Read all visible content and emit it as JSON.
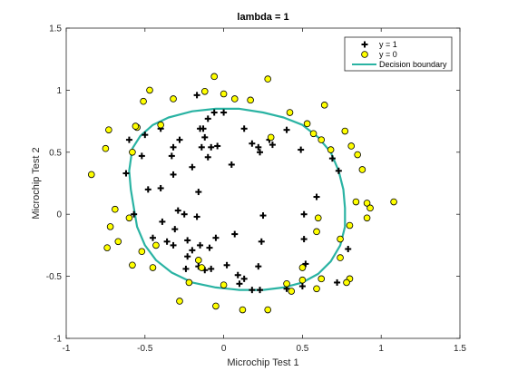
{
  "chart_data": {
    "type": "scatter",
    "title": "lambda = 1",
    "xlabel": "Microchip Test 1",
    "ylabel": "Microchip Test 2",
    "xlim": [
      -1,
      1.5
    ],
    "ylim": [
      -1,
      1.5
    ],
    "xticks": [
      -1,
      -0.5,
      0,
      0.5,
      1,
      1.5
    ],
    "xtick_labels": [
      "-1",
      "-0.5",
      "0",
      "0.5",
      "1",
      "1.5"
    ],
    "yticks": [
      -1,
      -0.5,
      0,
      0.5,
      1,
      1.5
    ],
    "ytick_labels": [
      "-1",
      "-0.5",
      "0",
      "0.5",
      "1",
      "1.5"
    ],
    "grid": false,
    "legend_position": "top-right",
    "series": [
      {
        "name": "y = 1",
        "marker": "plus",
        "color": "#000000",
        "points": [
          [
            -0.17,
            0.96
          ],
          [
            -0.06,
            0.82
          ],
          [
            -0.1,
            0.77
          ],
          [
            0.0,
            0.82
          ],
          [
            -0.6,
            0.6
          ],
          [
            -0.5,
            0.64
          ],
          [
            -0.52,
            0.47
          ],
          [
            -0.4,
            0.69
          ],
          [
            -0.32,
            0.54
          ],
          [
            -0.33,
            0.47
          ],
          [
            -0.28,
            0.6
          ],
          [
            -0.62,
            0.33
          ],
          [
            -0.48,
            0.2
          ],
          [
            -0.4,
            0.21
          ],
          [
            -0.32,
            0.32
          ],
          [
            -0.29,
            0.03
          ],
          [
            -0.25,
            0.0
          ],
          [
            -0.2,
            0.38
          ],
          [
            -0.15,
            0.69
          ],
          [
            -0.13,
            0.69
          ],
          [
            -0.12,
            0.62
          ],
          [
            -0.14,
            0.54
          ],
          [
            -0.08,
            0.54
          ],
          [
            -0.1,
            0.46
          ],
          [
            -0.04,
            0.55
          ],
          [
            -0.16,
            0.18
          ],
          [
            -0.17,
            -0.02
          ],
          [
            0.05,
            0.4
          ],
          [
            0.13,
            0.69
          ],
          [
            0.18,
            0.57
          ],
          [
            0.22,
            0.54
          ],
          [
            0.23,
            0.5
          ],
          [
            0.29,
            0.6
          ],
          [
            0.31,
            0.56
          ],
          [
            0.4,
            0.68
          ],
          [
            0.49,
            0.52
          ],
          [
            0.51,
            -0.0
          ],
          [
            0.51,
            -0.2
          ],
          [
            0.59,
            0.14
          ],
          [
            0.69,
            0.45
          ],
          [
            0.73,
            0.35
          ],
          [
            0.79,
            -0.28
          ],
          [
            0.72,
            -0.55
          ],
          [
            0.5,
            -0.58
          ],
          [
            0.4,
            -0.6
          ],
          [
            0.22,
            -0.42
          ],
          [
            0.23,
            -0.61
          ],
          [
            0.18,
            -0.61
          ],
          [
            0.13,
            -0.52
          ],
          [
            0.1,
            -0.56
          ],
          [
            0.09,
            -0.49
          ],
          [
            0.02,
            -0.41
          ],
          [
            0.07,
            -0.16
          ],
          [
            0.24,
            -0.22
          ],
          [
            0.52,
            -0.4
          ],
          [
            0.25,
            -0.01
          ],
          [
            -0.05,
            -0.19
          ],
          [
            -0.09,
            -0.27
          ],
          [
            -0.15,
            -0.25
          ],
          [
            -0.2,
            -0.29
          ],
          [
            -0.23,
            -0.34
          ],
          [
            -0.32,
            -0.25
          ],
          [
            -0.36,
            -0.22
          ],
          [
            -0.45,
            -0.19
          ],
          [
            -0.39,
            -0.06
          ],
          [
            -0.31,
            -0.12
          ],
          [
            -0.23,
            -0.21
          ],
          [
            -0.08,
            -0.44
          ],
          [
            -0.12,
            -0.45
          ],
          [
            -0.16,
            -0.42
          ],
          [
            -0.24,
            -0.44
          ],
          [
            -0.57,
            0.0
          ]
        ]
      },
      {
        "name": "y = 0",
        "marker": "circle",
        "color": "#ffff00",
        "points": [
          [
            -0.84,
            0.32
          ],
          [
            -0.75,
            0.53
          ],
          [
            -0.73,
            0.68
          ],
          [
            -0.55,
            0.7
          ],
          [
            -0.58,
            0.5
          ],
          [
            -0.51,
            0.91
          ],
          [
            -0.47,
            1.0
          ],
          [
            -0.4,
            0.72
          ],
          [
            -0.32,
            0.93
          ],
          [
            -0.12,
            0.99
          ],
          [
            -0.06,
            1.11
          ],
          [
            0.0,
            0.97
          ],
          [
            0.07,
            0.93
          ],
          [
            0.17,
            0.92
          ],
          [
            0.28,
            1.09
          ],
          [
            0.3,
            0.62
          ],
          [
            0.42,
            0.82
          ],
          [
            0.53,
            0.73
          ],
          [
            0.57,
            0.65
          ],
          [
            0.62,
            0.6
          ],
          [
            0.68,
            0.52
          ],
          [
            0.64,
            0.88
          ],
          [
            0.77,
            0.67
          ],
          [
            0.81,
            0.55
          ],
          [
            0.85,
            0.48
          ],
          [
            0.88,
            0.36
          ],
          [
            0.91,
            0.09
          ],
          [
            0.93,
            0.05
          ],
          [
            0.91,
            -0.03
          ],
          [
            0.84,
            0.1
          ],
          [
            0.8,
            -0.09
          ],
          [
            0.6,
            -0.03
          ],
          [
            0.59,
            -0.14
          ],
          [
            0.74,
            -0.2
          ],
          [
            0.74,
            -0.35
          ],
          [
            0.8,
            -0.52
          ],
          [
            0.78,
            -0.55
          ],
          [
            0.62,
            -0.52
          ],
          [
            0.59,
            -0.6
          ],
          [
            0.5,
            -0.53
          ],
          [
            0.5,
            -0.43
          ],
          [
            0.43,
            -0.62
          ],
          [
            0.4,
            -0.56
          ],
          [
            0.28,
            -0.77
          ],
          [
            0.12,
            -0.77
          ],
          [
            -0.05,
            -0.74
          ],
          [
            0.0,
            -0.57
          ],
          [
            -0.14,
            -0.43
          ],
          [
            -0.16,
            -0.37
          ],
          [
            -0.22,
            -0.55
          ],
          [
            -0.28,
            -0.7
          ],
          [
            -0.45,
            -0.43
          ],
          [
            -0.52,
            -0.3
          ],
          [
            -0.43,
            -0.25
          ],
          [
            -0.58,
            -0.41
          ],
          [
            -0.74,
            -0.27
          ],
          [
            -0.67,
            -0.22
          ],
          [
            -0.72,
            -0.1
          ],
          [
            -0.69,
            0.04
          ],
          [
            -0.6,
            -0.03
          ],
          [
            -0.56,
            0.71
          ],
          [
            1.08,
            0.1
          ]
        ]
      }
    ],
    "decision_boundary": {
      "name": "Decision boundary",
      "color": "#2ab3a3",
      "points": [
        [
          -0.58,
          0.53
        ],
        [
          -0.53,
          0.63
        ],
        [
          -0.45,
          0.72
        ],
        [
          -0.35,
          0.78
        ],
        [
          -0.2,
          0.83
        ],
        [
          -0.05,
          0.85
        ],
        [
          0.1,
          0.85
        ],
        [
          0.25,
          0.82
        ],
        [
          0.38,
          0.78
        ],
        [
          0.5,
          0.72
        ],
        [
          0.6,
          0.62
        ],
        [
          0.68,
          0.5
        ],
        [
          0.73,
          0.35
        ],
        [
          0.76,
          0.2
        ],
        [
          0.77,
          0.05
        ],
        [
          0.77,
          -0.1
        ],
        [
          0.74,
          -0.25
        ],
        [
          0.68,
          -0.38
        ],
        [
          0.6,
          -0.48
        ],
        [
          0.5,
          -0.55
        ],
        [
          0.38,
          -0.59
        ],
        [
          0.25,
          -0.61
        ],
        [
          0.1,
          -0.61
        ],
        [
          -0.05,
          -0.59
        ],
        [
          -0.2,
          -0.55
        ],
        [
          -0.33,
          -0.47
        ],
        [
          -0.43,
          -0.37
        ],
        [
          -0.5,
          -0.25
        ],
        [
          -0.55,
          -0.1
        ],
        [
          -0.57,
          0.05
        ],
        [
          -0.59,
          0.2
        ],
        [
          -0.6,
          0.35
        ],
        [
          -0.58,
          0.53
        ]
      ]
    }
  }
}
